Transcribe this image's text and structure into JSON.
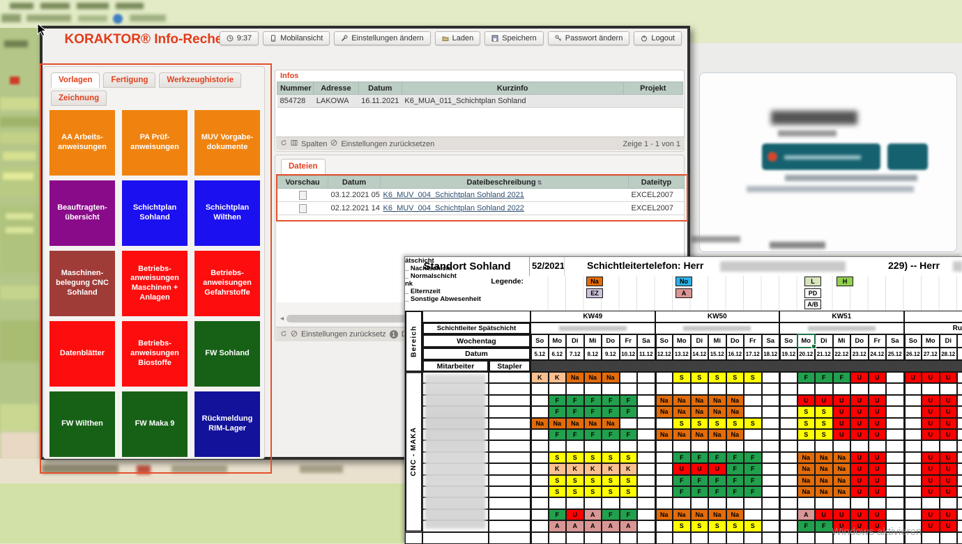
{
  "desktop": {
    "watermark": "Windows aktivieren"
  },
  "window": {
    "title": "KORAKTOR® Info-Recherche",
    "toolbar": [
      {
        "label": "9:37",
        "icon": "clock-icon"
      },
      {
        "label": "Mobilansicht",
        "icon": "phone-icon"
      },
      {
        "label": "Einstellungen ändern",
        "icon": "wrench-icon"
      },
      {
        "label": "Laden",
        "icon": "folder-icon"
      },
      {
        "label": "Speichern",
        "icon": "save-icon"
      },
      {
        "label": "Passwort ändern",
        "icon": "key-icon"
      },
      {
        "label": "Logout",
        "icon": "power-icon"
      }
    ],
    "tabs": [
      {
        "label": "Vorlagen",
        "active": true
      },
      {
        "label": "Fertigung",
        "active": false
      },
      {
        "label": "Werkzeughistorie",
        "active": false
      },
      {
        "label": "Zeichnung",
        "active": false
      }
    ],
    "tiles": [
      {
        "label": "AA Arbeits-\nanweisungen",
        "color": "#f0830f"
      },
      {
        "label": "PA Prüf-\nanweisungen",
        "color": "#f0830f"
      },
      {
        "label": "MUV Vorgabe-\ndokumente",
        "color": "#f0830f"
      },
      {
        "label": "Beauftragten-\nübersicht",
        "color": "#8a0b8a"
      },
      {
        "label": "Schichtplan\nSohland",
        "color": "#1b10f0"
      },
      {
        "label": "Schichtplan\nWilthen",
        "color": "#1b10f0"
      },
      {
        "label": "Maschinen-\nbelegung CNC\nSohland",
        "color": "#a03c38"
      },
      {
        "label": "Betriebs-\nanweisungen\nMaschinen +\nAnlagen",
        "color": "#fd0d0d"
      },
      {
        "label": "Betriebs-\nanweisungen\nGefahrstoffe",
        "color": "#fd0d0d"
      },
      {
        "label": "Datenblätter",
        "color": "#fd0d0d"
      },
      {
        "label": "Betriebs-\nanweisungen\nBiostoffe",
        "color": "#fd0d0d"
      },
      {
        "label": "FW Sohland",
        "color": "#176117"
      },
      {
        "label": "FW Wilthen",
        "color": "#176117"
      },
      {
        "label": "FW Maka 9",
        "color": "#176117"
      },
      {
        "label": "Rückmeldung\nRIM-Lager",
        "color": "#12129b"
      }
    ],
    "infos": {
      "legend": "Infos",
      "columns": [
        "Nummer",
        "Adresse",
        "Datum",
        "Kurzinfo",
        "Projekt"
      ],
      "rows": [
        [
          "854728",
          "LAKOWA",
          "16.11.2021",
          "K6_MUA_011_Schichtplan Sohland",
          ""
        ]
      ],
      "footer": {
        "spalten": "Spalten",
        "reset": "Einstellungen zurücksetzen",
        "range": "Zeige 1 - 1 von 1"
      }
    },
    "dateien": {
      "tab": "Dateien",
      "columns": [
        "Vorschau",
        "Datum",
        "Dateibeschreibung",
        "Dateityp"
      ],
      "rows": [
        {
          "datum": "03.12.2021 05:",
          "beschreibung": "K6_MUV_004_Schichtplan Sohland 2021",
          "typ": "EXCEL2007"
        },
        {
          "datum": "02.12.2021 14:",
          "beschreibung": "K6_MUV_004_Schichtplan Sohland 2022",
          "typ": "EXCEL2007"
        }
      ],
      "footer": {
        "reset": "Einstellungen zurücksetz",
        "badge": "1",
        "cut": "Dat"
      }
    }
  },
  "sheet": {
    "title": "Standort Sohland",
    "week_label": "52/2021",
    "phone_label": "Schichtleitertelefon:  Herr",
    "phone_suffix": "229) -- Herr",
    "legend_label": "Legende:",
    "legend_items": [
      {
        "row": 1,
        "col": 0,
        "code": "",
        "text": "ätschicht"
      },
      {
        "row": 1,
        "col": 1,
        "code": "Na",
        "text": "_ Nachtschicht"
      },
      {
        "row": 1,
        "col": 2,
        "code": "No",
        "text": "_ Normalschicht"
      },
      {
        "row": 1,
        "col": 3,
        "code": "L",
        "text": ""
      },
      {
        "row": 1,
        "col": 4,
        "code": "H",
        "text": ""
      },
      {
        "row": 2,
        "col": 0,
        "code": "",
        "text": "nk"
      },
      {
        "row": 2,
        "col": 1,
        "code": "EZ",
        "text": "_ Elternzeit"
      },
      {
        "row": 2,
        "col": 2,
        "code": "A",
        "text": "_ Sonstige Abwesenheit"
      },
      {
        "row": 2,
        "col": 3,
        "code": "PD",
        "text": ""
      },
      {
        "row": 3,
        "col": 3,
        "code": "A/B",
        "text": ""
      }
    ],
    "bereich_label": "Bereich",
    "group_label": "CNC - MAKA",
    "row_labels": {
      "schichtleiter": "Schichtleiter Spätschicht",
      "wochentag": "Wochentag",
      "datum": "Datum",
      "mitarbeiter": "Mitarbeiter",
      "stapler": "Stapler"
    },
    "weeks": [
      {
        "name": "KW49",
        "days": [
          "So",
          "Mo",
          "Di",
          "Mi",
          "Do",
          "Fr",
          "Sa"
        ],
        "dates": [
          "5.12",
          "6.12",
          "7.12",
          "8.12",
          "9.12",
          "10.12",
          "11.12"
        ]
      },
      {
        "name": "KW50",
        "days": [
          "So",
          "Mo",
          "Di",
          "Mi",
          "Do",
          "Fr",
          "Sa"
        ],
        "dates": [
          "12.12",
          "13.12",
          "14.12",
          "15.12",
          "16.12",
          "17.12",
          "18.12"
        ]
      },
      {
        "name": "KW51",
        "days": [
          "So",
          "Mo",
          "Di",
          "Mi",
          "Do",
          "Fr",
          "Sa"
        ],
        "dates": [
          "19.12",
          "20.12",
          "21.12",
          "22.12",
          "23.12",
          "24.12",
          "25.12"
        ]
      },
      {
        "name": "",
        "days": [
          "So",
          "Mo",
          "Di"
        ],
        "dates": [
          "26.12",
          "27.12",
          "28.12"
        ]
      }
    ],
    "week4_name_fragment": "Ru",
    "selected": {
      "week": "KW51",
      "day": "Mo",
      "date": "20.12"
    },
    "cell_colors": {
      "F": "#21a04d",
      "S": "#ffff00",
      "Na": "#e26b0a",
      "U": "#fe0000",
      "K": "#fac090",
      "A": "#d99694",
      "EZ": "#ccc1da",
      "No": "#2fafe3",
      "L": "#d8e4bc",
      "H": "#92d050",
      "PD": "#ffffff",
      "A/B": "#ffffff"
    },
    "rows": [
      [
        "K",
        "K",
        "Na",
        "Na",
        "Na",
        "",
        "",
        "",
        "S",
        "S",
        "S",
        "S",
        "S",
        "",
        "",
        "F",
        "F",
        "F",
        "U",
        "U",
        "",
        "U",
        "U",
        "U"
      ],
      [
        "",
        "",
        "",
        "",
        "",
        "",
        "",
        "",
        "",
        "",
        "",
        "",
        "",
        "",
        "",
        "",
        "",
        "",
        "",
        "",
        "",
        "",
        "",
        ""
      ],
      [
        "",
        "F",
        "F",
        "F",
        "F",
        "F",
        "",
        "Na",
        "Na",
        "Na",
        "Na",
        "Na",
        "",
        "",
        "",
        "U",
        "U",
        "U",
        "U",
        "U",
        "",
        "",
        "U",
        "U"
      ],
      [
        "",
        "F",
        "F",
        "F",
        "F",
        "F",
        "",
        "Na",
        "Na",
        "Na",
        "Na",
        "Na",
        "",
        "",
        "",
        "S",
        "S",
        "U",
        "U",
        "U",
        "",
        "",
        "U",
        "U"
      ],
      [
        "Na",
        "Na",
        "Na",
        "Na",
        "Na",
        "",
        "",
        "",
        "S",
        "S",
        "S",
        "S",
        "S",
        "",
        "",
        "S",
        "S",
        "U",
        "U",
        "U",
        "",
        "",
        "U",
        "U"
      ],
      [
        "",
        "F",
        "F",
        "F",
        "F",
        "F",
        "",
        "Na",
        "Na",
        "Na",
        "Na",
        "Na",
        "",
        "",
        "",
        "S",
        "S",
        "U",
        "U",
        "U",
        "",
        "",
        "U",
        "U"
      ],
      [
        "",
        "",
        "",
        "",
        "",
        "",
        "",
        "",
        "",
        "",
        "",
        "",
        "",
        "",
        "",
        "",
        "",
        "",
        "",
        "",
        "",
        "",
        "",
        ""
      ],
      [
        "",
        "S",
        "S",
        "S",
        "S",
        "S",
        "",
        "",
        "F",
        "F",
        "F",
        "F",
        "F",
        "",
        "",
        "Na",
        "Na",
        "Na",
        "U",
        "U",
        "",
        "",
        "U",
        "U"
      ],
      [
        "",
        "K",
        "K",
        "K",
        "K",
        "K",
        "",
        "",
        "U",
        "U",
        "U",
        "F",
        "F",
        "",
        "",
        "Na",
        "Na",
        "Na",
        "U",
        "U",
        "",
        "",
        "U",
        "U"
      ],
      [
        "",
        "S",
        "S",
        "S",
        "S",
        "S",
        "",
        "",
        "F",
        "F",
        "F",
        "F",
        "F",
        "",
        "",
        "Na",
        "Na",
        "Na",
        "U",
        "U",
        "",
        "",
        "U",
        "U"
      ],
      [
        "",
        "S",
        "S",
        "S",
        "S",
        "S",
        "",
        "",
        "F",
        "F",
        "F",
        "F",
        "F",
        "",
        "",
        "Na",
        "Na",
        "Na",
        "U",
        "U",
        "",
        "",
        "U",
        "U"
      ],
      [
        "",
        "",
        "",
        "",
        "",
        "",
        "",
        "",
        "",
        "",
        "",
        "",
        "",
        "",
        "",
        "",
        "",
        "",
        "",
        "",
        "",
        "",
        "",
        ""
      ],
      [
        "",
        "F",
        "U",
        "A",
        "F",
        "F",
        "",
        "Na",
        "Na",
        "Na",
        "Na",
        "Na",
        "",
        "",
        "",
        "A",
        "U",
        "U",
        "U",
        "U",
        "",
        "",
        "U",
        "U"
      ],
      [
        "",
        "A",
        "A",
        "A",
        "A",
        "A",
        "",
        "",
        "S",
        "S",
        "S",
        "S",
        "S",
        "",
        "",
        "F",
        "F",
        "U",
        "U",
        "U",
        "",
        "",
        "U",
        "U"
      ]
    ]
  }
}
